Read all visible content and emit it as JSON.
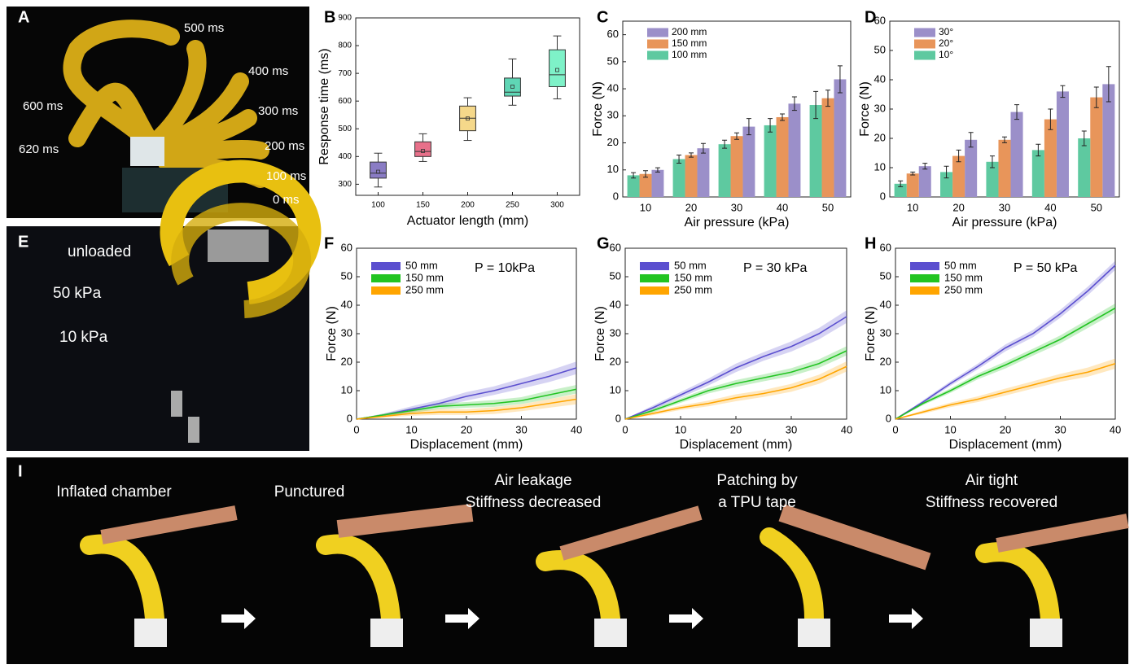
{
  "photo_a": {
    "panel": "A",
    "labels": [
      "500 ms",
      "400 ms",
      "300 ms",
      "200 ms",
      "100 ms",
      "0 ms",
      "600 ms",
      "620 ms"
    ]
  },
  "photo_e": {
    "panel": "E",
    "labels": [
      "unloaded",
      "50 kPa",
      "10 kPa"
    ]
  },
  "photo_i": {
    "panel": "I",
    "captions": [
      [
        "Inflated chamber"
      ],
      [
        "Punctured"
      ],
      [
        "Air leakage",
        "Stiffness decreased"
      ],
      [
        "Patching by",
        "a TPU tape"
      ],
      [
        "Air tight",
        "Stiffness recovered"
      ]
    ]
  },
  "chart_data": [
    {
      "type": "box",
      "panel": "B",
      "xlabel": "Actuator length (mm)",
      "ylabel": "Response time (ms)",
      "categories": [
        "100",
        "150",
        "200",
        "250",
        "300"
      ],
      "colors": [
        "#8a7cc4",
        "#e8708a",
        "#f5d88a",
        "#5fd6b5",
        "#7ef2c8"
      ],
      "boxes": [
        {
          "min": 290,
          "q1": 322,
          "median": 340,
          "q3": 380,
          "max": 412,
          "mean": 345
        },
        {
          "min": 382,
          "q1": 400,
          "median": 418,
          "q3": 453,
          "max": 482,
          "mean": 420
        },
        {
          "min": 458,
          "q1": 493,
          "median": 538,
          "q3": 582,
          "max": 612,
          "mean": 537
        },
        {
          "min": 585,
          "q1": 618,
          "median": 632,
          "q3": 683,
          "max": 752,
          "mean": 652
        },
        {
          "min": 608,
          "q1": 652,
          "median": 695,
          "q3": 785,
          "max": 835,
          "mean": 712
        }
      ],
      "ylim": [
        260,
        900
      ],
      "yticks": [
        300,
        400,
        500,
        600,
        700,
        800,
        900
      ]
    },
    {
      "type": "bar",
      "panel": "C",
      "xlabel": "Air pressure (kPa)",
      "ylabel": "Force (N)",
      "categories": [
        "10",
        "20",
        "30",
        "40",
        "50"
      ],
      "series": [
        {
          "name": "200 mm",
          "color": "#9b8fc9",
          "values": [
            10,
            18,
            26,
            34.5,
            43.5
          ],
          "errors": [
            0.8,
            1.8,
            3,
            2.5,
            5
          ]
        },
        {
          "name": "150 mm",
          "color": "#e8955a",
          "values": [
            8.5,
            15.5,
            22.5,
            29.5,
            36.5
          ],
          "errors": [
            1.2,
            0.8,
            1.2,
            1.2,
            3
          ]
        },
        {
          "name": "100 mm",
          "color": "#5ec9a0",
          "values": [
            8,
            14,
            19.5,
            26.5,
            34
          ],
          "errors": [
            1,
            1.5,
            1.5,
            2.5,
            5
          ]
        }
      ],
      "ylim": [
        0,
        65
      ],
      "yticks": [
        0,
        10,
        20,
        30,
        40,
        50,
        60
      ]
    },
    {
      "type": "bar",
      "panel": "D",
      "xlabel": "Air pressure (kPa)",
      "ylabel": "Force (N)",
      "categories": [
        "10",
        "20",
        "30",
        "40",
        "50"
      ],
      "series": [
        {
          "name": "30°",
          "color": "#9b8fc9",
          "values": [
            10.5,
            19.5,
            29,
            36,
            38.5
          ],
          "errors": [
            1,
            2.5,
            2.5,
            2,
            6
          ]
        },
        {
          "name": "20°",
          "color": "#e8955a",
          "values": [
            8,
            14,
            19.5,
            26.5,
            34
          ],
          "errors": [
            0.5,
            2,
            1,
            3.5,
            3.5
          ]
        },
        {
          "name": "10°",
          "color": "#5ec9a0",
          "values": [
            4.5,
            8.5,
            12,
            16,
            20
          ],
          "errors": [
            1,
            2,
            2,
            2,
            2.5
          ]
        }
      ],
      "ylim": [
        0,
        60
      ],
      "yticks": [
        0,
        10,
        20,
        30,
        40,
        50,
        60
      ]
    },
    {
      "type": "line",
      "panel": "F",
      "xlabel": "Displacement (mm)",
      "ylabel": "Force (N)",
      "annotation": "P = 10kPa",
      "x": [
        0,
        5,
        10,
        15,
        20,
        25,
        30,
        35,
        40
      ],
      "series": [
        {
          "name": "50 mm",
          "color": "#5b4fcf",
          "values": [
            0,
            1.5,
            3.5,
            5.5,
            8,
            10,
            12.5,
            15,
            18
          ],
          "errors": [
            0,
            0.5,
            1,
            1.2,
            1.5,
            1.5,
            1.8,
            2,
            2.2
          ]
        },
        {
          "name": "150 mm",
          "color": "#22c422",
          "values": [
            0,
            1.5,
            3,
            4.5,
            5,
            5.5,
            6.5,
            8.5,
            10.5
          ],
          "errors": [
            0,
            0.5,
            0.8,
            1,
            1,
            1.2,
            1.2,
            1.5,
            1.5
          ]
        },
        {
          "name": "250 mm",
          "color": "#ffa500",
          "values": [
            0,
            1,
            2,
            2.5,
            2.5,
            3,
            4,
            5.5,
            7
          ],
          "errors": [
            0,
            0.5,
            0.8,
            1,
            1,
            1.2,
            1.2,
            1.5,
            1.8
          ]
        }
      ],
      "xlim": [
        0,
        40
      ],
      "xticks": [
        0,
        10,
        20,
        30,
        40
      ],
      "ylim": [
        0,
        60
      ],
      "yticks": [
        0,
        10,
        20,
        30,
        40,
        50,
        60
      ]
    },
    {
      "type": "line",
      "panel": "G",
      "xlabel": "Displacement (mm)",
      "ylabel": "Force (N)",
      "annotation": "P = 30 kPa",
      "x": [
        0,
        5,
        10,
        15,
        20,
        25,
        30,
        35,
        40
      ],
      "series": [
        {
          "name": "50 mm",
          "color": "#5b4fcf",
          "values": [
            0,
            4,
            8.5,
            13,
            18,
            22,
            25.5,
            30,
            36
          ],
          "errors": [
            0,
            0.8,
            1,
            1.2,
            1.5,
            1.5,
            1.8,
            2,
            2.2
          ]
        },
        {
          "name": "150 mm",
          "color": "#22c422",
          "values": [
            0,
            3,
            6.5,
            10,
            12.5,
            14.5,
            16.5,
            19.5,
            24
          ],
          "errors": [
            0,
            0.6,
            0.8,
            1,
            1.2,
            1.2,
            1.4,
            1.5,
            1.6
          ]
        },
        {
          "name": "250 mm",
          "color": "#ffa500",
          "values": [
            0,
            2,
            4,
            5.5,
            7.5,
            9,
            11,
            14,
            18.5
          ],
          "errors": [
            0,
            0.6,
            0.8,
            1,
            1.2,
            1.2,
            1.4,
            1.6,
            1.8
          ]
        }
      ],
      "xlim": [
        0,
        40
      ],
      "xticks": [
        0,
        10,
        20,
        30,
        40
      ],
      "ylim": [
        0,
        60
      ],
      "yticks": [
        0,
        10,
        20,
        30,
        40,
        50,
        60
      ]
    },
    {
      "type": "line",
      "panel": "H",
      "xlabel": "Displacement (mm)",
      "ylabel": "Force (N)",
      "annotation": "P = 50 kPa",
      "x": [
        0,
        5,
        10,
        15,
        20,
        25,
        30,
        35,
        40
      ],
      "series": [
        {
          "name": "50 mm",
          "color": "#5b4fcf",
          "values": [
            0,
            6,
            12.5,
            18.5,
            25,
            30,
            37,
            45,
            54
          ],
          "errors": [
            0,
            0.6,
            0.8,
            1,
            1.2,
            1.3,
            1.4,
            1.5,
            1.6
          ]
        },
        {
          "name": "150 mm",
          "color": "#22c422",
          "values": [
            0,
            5.5,
            10,
            15,
            19,
            23.5,
            28,
            33.5,
            39
          ],
          "errors": [
            0,
            0.6,
            0.8,
            1,
            1.2,
            1.2,
            1.4,
            1.5,
            1.6
          ]
        },
        {
          "name": "250 mm",
          "color": "#ffa500",
          "values": [
            0,
            2.5,
            5,
            7,
            9.5,
            12,
            14.5,
            16.5,
            19.5
          ],
          "errors": [
            0,
            0.6,
            0.8,
            1,
            1.2,
            1.3,
            1.4,
            1.6,
            1.8
          ]
        }
      ],
      "xlim": [
        0,
        40
      ],
      "xticks": [
        0,
        10,
        20,
        30,
        40
      ],
      "ylim": [
        0,
        60
      ],
      "yticks": [
        0,
        10,
        20,
        30,
        40,
        50,
        60
      ]
    }
  ]
}
